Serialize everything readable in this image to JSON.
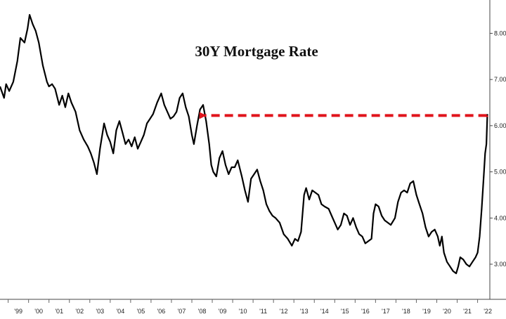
{
  "chart_data": {
    "type": "line",
    "title": "30Y Mortgage Rate",
    "xlabel": "",
    "ylabel": "",
    "x_ticks": [
      "'99",
      "'00",
      "'01",
      "'02",
      "'03",
      "'04",
      "'05",
      "'06",
      "'07",
      "'08",
      "'09",
      "'10",
      "'11",
      "'12",
      "'13",
      "'14",
      "'15",
      "'16",
      "'17",
      "'18",
      "'19",
      "'20",
      "'21",
      "'22"
    ],
    "y_ticks": [
      "3.00",
      "4.00",
      "5.00",
      "6.00",
      "7.00",
      "8.00"
    ],
    "ylim": [
      2.3,
      8.6
    ],
    "xlim": [
      1998.6,
      2022.6
    ],
    "grid": false,
    "colors": {
      "line": "#000000",
      "arrow": "#e0141c"
    },
    "annotation": {
      "type": "dashed-arrow",
      "from": [
        2022.45,
        6.22
      ],
      "to": [
        2008.3,
        6.22
      ]
    },
    "series": [
      {
        "values": [
          [
            1998.6,
            6.85
          ],
          [
            1998.8,
            6.6
          ],
          [
            1998.9,
            6.9
          ],
          [
            1999.05,
            6.75
          ],
          [
            1999.25,
            6.95
          ],
          [
            1999.45,
            7.4
          ],
          [
            1999.6,
            7.9
          ],
          [
            1999.8,
            7.8
          ],
          [
            1999.95,
            8.1
          ],
          [
            2000.05,
            8.4
          ],
          [
            2000.2,
            8.2
          ],
          [
            2000.35,
            8.05
          ],
          [
            2000.5,
            7.8
          ],
          [
            2000.7,
            7.3
          ],
          [
            2000.9,
            6.95
          ],
          [
            2001.0,
            6.85
          ],
          [
            2001.15,
            6.9
          ],
          [
            2001.3,
            6.8
          ],
          [
            2001.5,
            6.45
          ],
          [
            2001.65,
            6.65
          ],
          [
            2001.8,
            6.4
          ],
          [
            2001.95,
            6.7
          ],
          [
            2002.1,
            6.5
          ],
          [
            2002.3,
            6.3
          ],
          [
            2002.5,
            5.9
          ],
          [
            2002.7,
            5.7
          ],
          [
            2002.9,
            5.55
          ],
          [
            2003.05,
            5.4
          ],
          [
            2003.2,
            5.2
          ],
          [
            2003.35,
            4.95
          ],
          [
            2003.5,
            5.5
          ],
          [
            2003.7,
            6.05
          ],
          [
            2003.85,
            5.8
          ],
          [
            2004.0,
            5.65
          ],
          [
            2004.15,
            5.4
          ],
          [
            2004.3,
            5.9
          ],
          [
            2004.45,
            6.1
          ],
          [
            2004.6,
            5.85
          ],
          [
            2004.75,
            5.6
          ],
          [
            2004.9,
            5.7
          ],
          [
            2005.05,
            5.55
          ],
          [
            2005.2,
            5.75
          ],
          [
            2005.35,
            5.5
          ],
          [
            2005.5,
            5.65
          ],
          [
            2005.65,
            5.8
          ],
          [
            2005.8,
            6.05
          ],
          [
            2005.95,
            6.15
          ],
          [
            2006.1,
            6.25
          ],
          [
            2006.3,
            6.5
          ],
          [
            2006.5,
            6.7
          ],
          [
            2006.65,
            6.45
          ],
          [
            2006.8,
            6.3
          ],
          [
            2006.95,
            6.15
          ],
          [
            2007.1,
            6.2
          ],
          [
            2007.25,
            6.3
          ],
          [
            2007.4,
            6.6
          ],
          [
            2007.55,
            6.7
          ],
          [
            2007.7,
            6.4
          ],
          [
            2007.85,
            6.2
          ],
          [
            2008.0,
            5.8
          ],
          [
            2008.1,
            5.6
          ],
          [
            2008.25,
            6.0
          ],
          [
            2008.4,
            6.35
          ],
          [
            2008.55,
            6.45
          ],
          [
            2008.7,
            6.1
          ],
          [
            2008.85,
            5.6
          ],
          [
            2008.95,
            5.15
          ],
          [
            2009.05,
            5.0
          ],
          [
            2009.2,
            4.9
          ],
          [
            2009.35,
            5.3
          ],
          [
            2009.5,
            5.45
          ],
          [
            2009.65,
            5.15
          ],
          [
            2009.8,
            4.95
          ],
          [
            2009.95,
            5.1
          ],
          [
            2010.1,
            5.1
          ],
          [
            2010.25,
            5.25
          ],
          [
            2010.45,
            4.9
          ],
          [
            2010.6,
            4.6
          ],
          [
            2010.75,
            4.35
          ],
          [
            2010.9,
            4.85
          ],
          [
            2011.05,
            4.95
          ],
          [
            2011.2,
            5.05
          ],
          [
            2011.35,
            4.8
          ],
          [
            2011.5,
            4.6
          ],
          [
            2011.65,
            4.3
          ],
          [
            2011.8,
            4.15
          ],
          [
            2011.95,
            4.05
          ],
          [
            2012.1,
            4.0
          ],
          [
            2012.3,
            3.9
          ],
          [
            2012.5,
            3.65
          ],
          [
            2012.7,
            3.55
          ],
          [
            2012.9,
            3.4
          ],
          [
            2013.05,
            3.55
          ],
          [
            2013.2,
            3.5
          ],
          [
            2013.35,
            3.7
          ],
          [
            2013.5,
            4.5
          ],
          [
            2013.6,
            4.65
          ],
          [
            2013.75,
            4.4
          ],
          [
            2013.9,
            4.6
          ],
          [
            2014.05,
            4.55
          ],
          [
            2014.2,
            4.5
          ],
          [
            2014.35,
            4.3
          ],
          [
            2014.5,
            4.25
          ],
          [
            2014.7,
            4.2
          ],
          [
            2014.85,
            4.05
          ],
          [
            2015.0,
            3.9
          ],
          [
            2015.15,
            3.75
          ],
          [
            2015.3,
            3.85
          ],
          [
            2015.45,
            4.1
          ],
          [
            2015.6,
            4.05
          ],
          [
            2015.75,
            3.85
          ],
          [
            2015.9,
            4.0
          ],
          [
            2016.05,
            3.8
          ],
          [
            2016.2,
            3.65
          ],
          [
            2016.35,
            3.6
          ],
          [
            2016.5,
            3.45
          ],
          [
            2016.65,
            3.5
          ],
          [
            2016.8,
            3.55
          ],
          [
            2016.9,
            4.1
          ],
          [
            2017.0,
            4.3
          ],
          [
            2017.15,
            4.25
          ],
          [
            2017.3,
            4.05
          ],
          [
            2017.45,
            3.95
          ],
          [
            2017.6,
            3.9
          ],
          [
            2017.75,
            3.85
          ],
          [
            2017.95,
            4.0
          ],
          [
            2018.1,
            4.35
          ],
          [
            2018.25,
            4.55
          ],
          [
            2018.4,
            4.6
          ],
          [
            2018.55,
            4.55
          ],
          [
            2018.7,
            4.75
          ],
          [
            2018.85,
            4.8
          ],
          [
            2019.0,
            4.5
          ],
          [
            2019.15,
            4.3
          ],
          [
            2019.3,
            4.1
          ],
          [
            2019.45,
            3.8
          ],
          [
            2019.6,
            3.6
          ],
          [
            2019.75,
            3.7
          ],
          [
            2019.9,
            3.75
          ],
          [
            2020.05,
            3.6
          ],
          [
            2020.15,
            3.4
          ],
          [
            2020.25,
            3.6
          ],
          [
            2020.35,
            3.25
          ],
          [
            2020.5,
            3.05
          ],
          [
            2020.65,
            2.95
          ],
          [
            2020.8,
            2.85
          ],
          [
            2020.95,
            2.8
          ],
          [
            2021.05,
            2.95
          ],
          [
            2021.15,
            3.15
          ],
          [
            2021.3,
            3.1
          ],
          [
            2021.45,
            3.0
          ],
          [
            2021.6,
            2.95
          ],
          [
            2021.75,
            3.05
          ],
          [
            2021.9,
            3.15
          ],
          [
            2022.0,
            3.25
          ],
          [
            2022.1,
            3.6
          ],
          [
            2022.2,
            4.2
          ],
          [
            2022.3,
            4.9
          ],
          [
            2022.37,
            5.4
          ],
          [
            2022.43,
            5.6
          ],
          [
            2022.48,
            6.25
          ]
        ]
      }
    ]
  }
}
